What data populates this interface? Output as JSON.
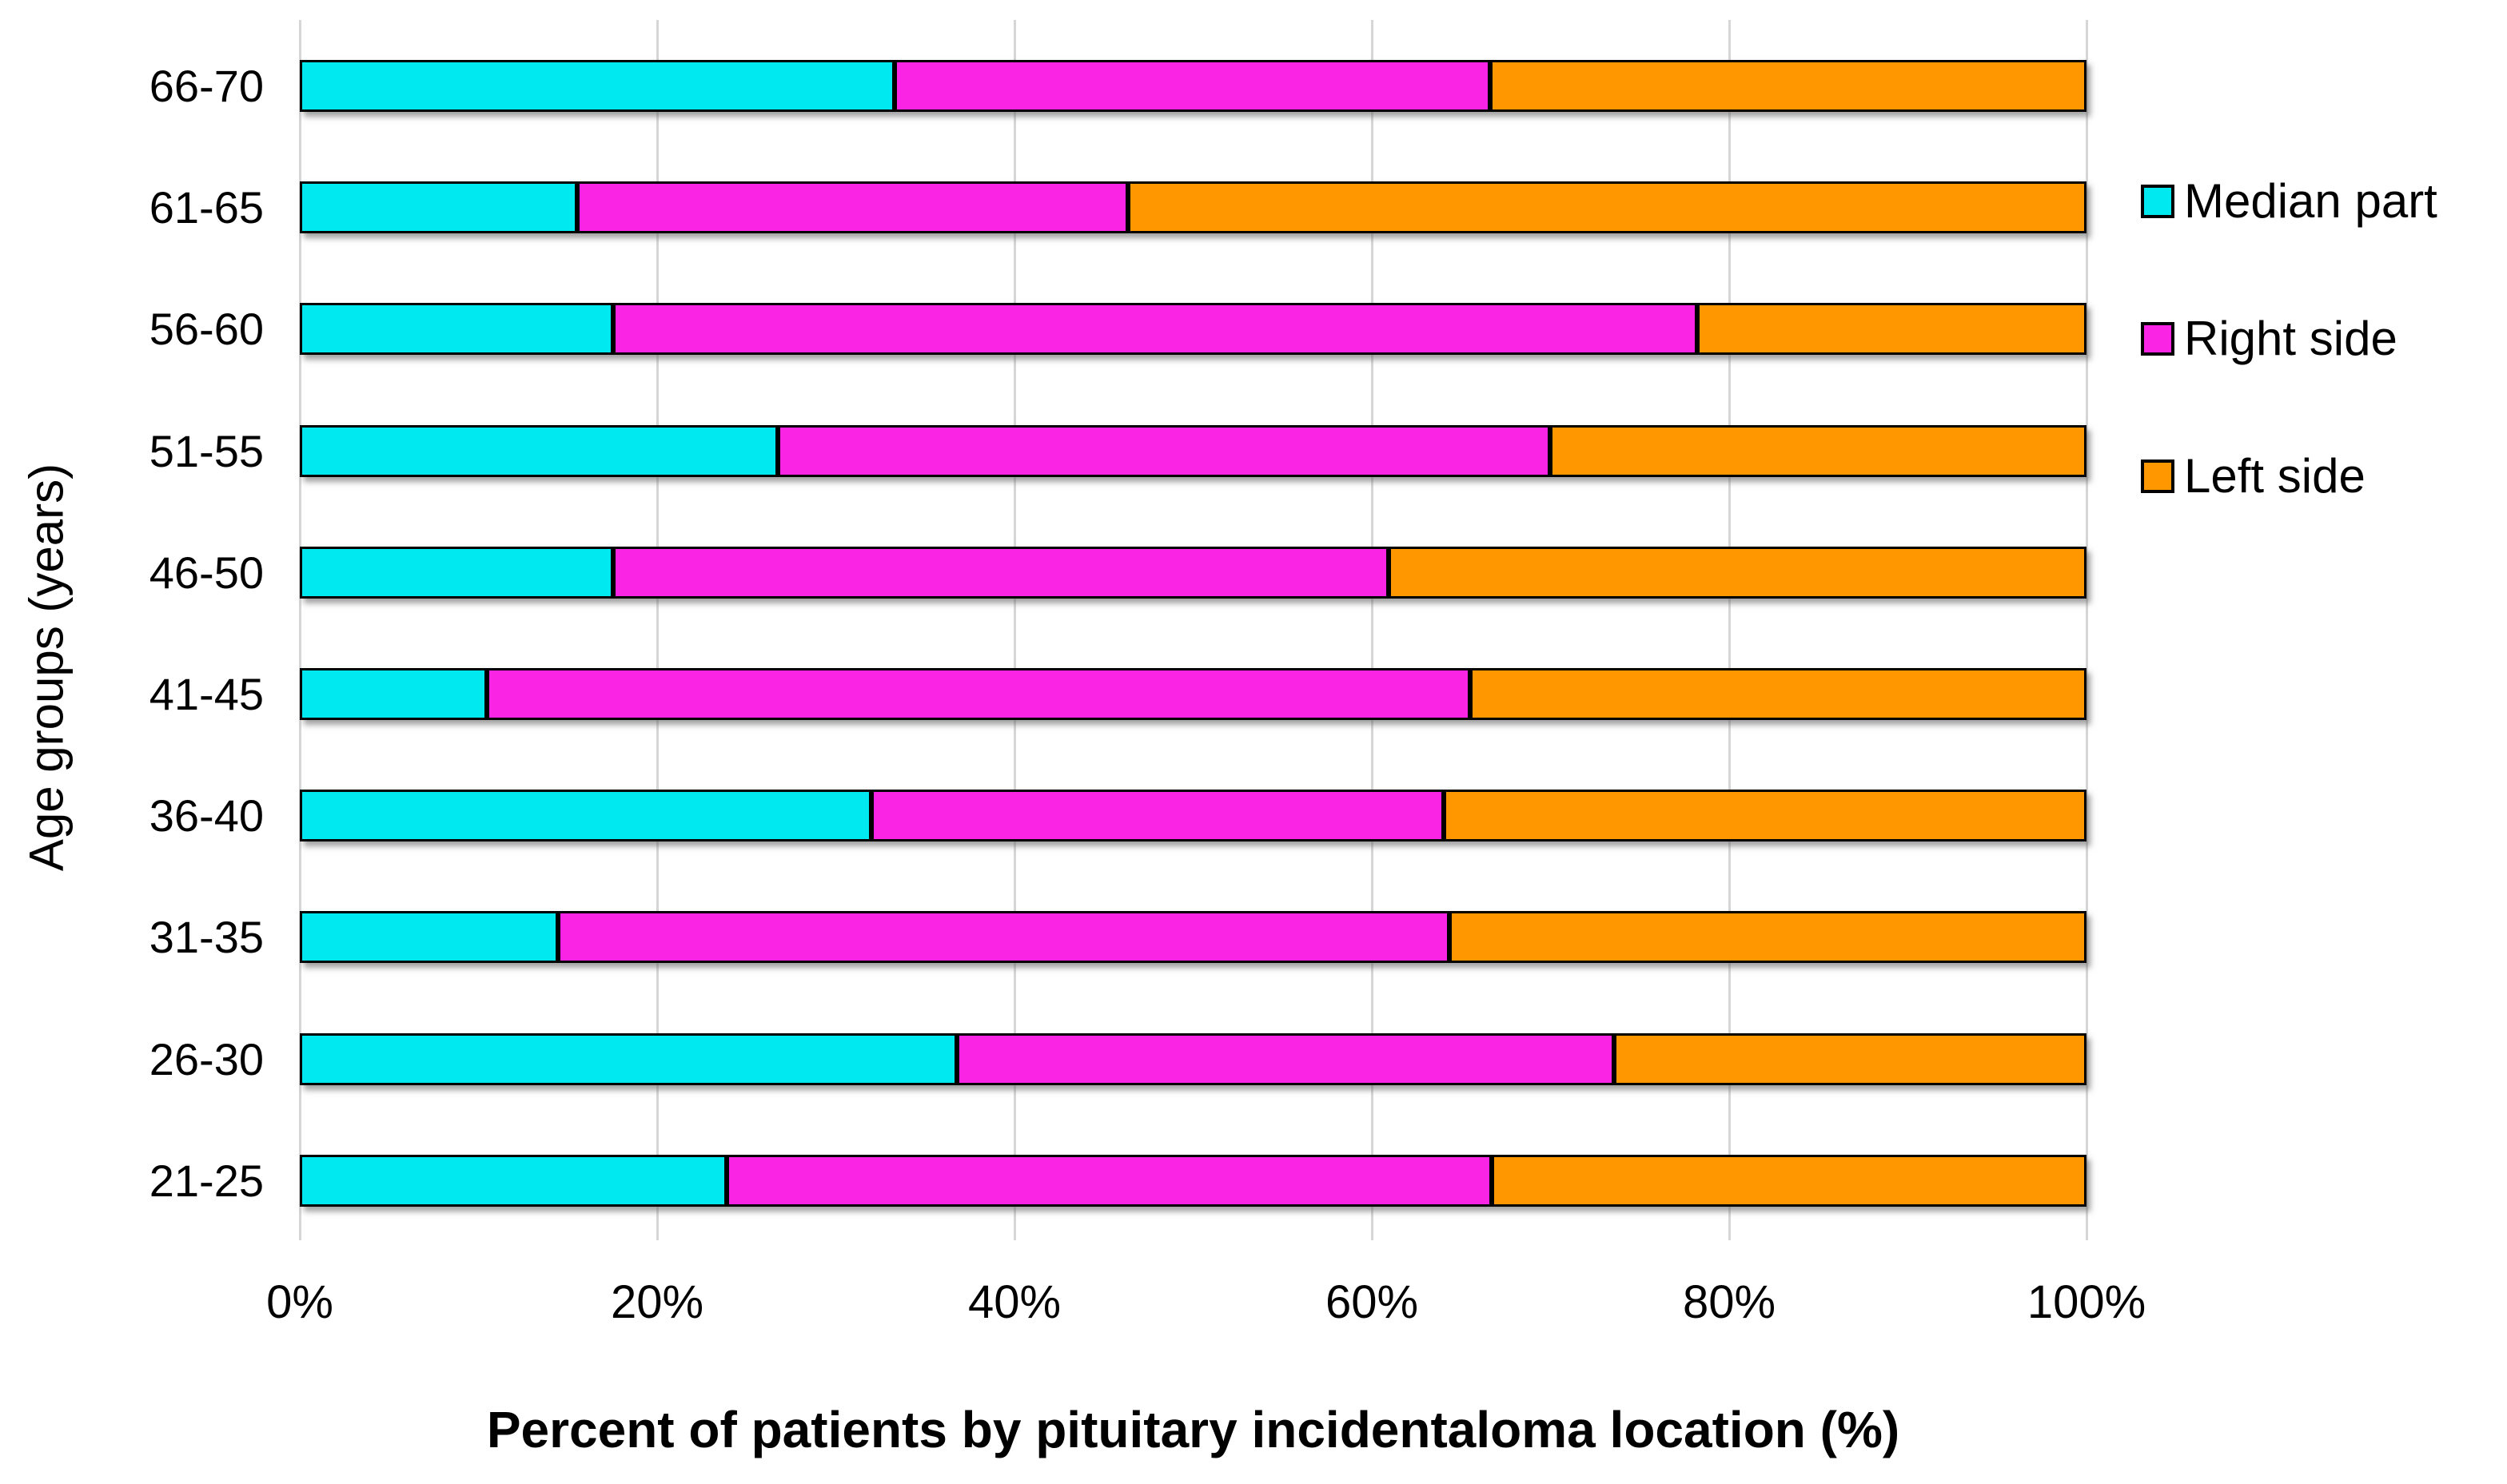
{
  "chart_data": {
    "type": "bar",
    "variant": "horizontal-stacked-100",
    "title": "",
    "xlabel": "Percent of patients by pituitary incidentaloma location (%)",
    "ylabel": "Age groups (years)",
    "xlim": [
      0,
      100
    ],
    "x_ticks": [
      "0%",
      "20%",
      "40%",
      "60%",
      "80%",
      "100%"
    ],
    "grid": true,
    "gridline_color": "#d6d6d6",
    "legend_position": "right",
    "bar_border_color": "#000000",
    "categories": [
      "66-70",
      "61-65",
      "56-60",
      "51-55",
      "46-50",
      "41-45",
      "36-40",
      "31-35",
      "26-30",
      "21-25"
    ],
    "series": [
      {
        "name": "Median part",
        "color": "#00e9f0",
        "values": [
          33.3,
          15.4,
          17.4,
          26.7,
          17.4,
          10.3,
          32.0,
          14.3,
          36.8,
          23.8
        ]
      },
      {
        "name": "Right side",
        "color": "#fa24e4",
        "values": [
          33.3,
          30.8,
          60.9,
          43.3,
          43.5,
          55.2,
          32.0,
          50.0,
          36.8,
          42.9
        ]
      },
      {
        "name": "Left side",
        "color": "#ff9800",
        "values": [
          33.4,
          53.8,
          21.7,
          30.0,
          39.1,
          34.5,
          36.0,
          35.7,
          26.4,
          33.3
        ]
      }
    ]
  }
}
